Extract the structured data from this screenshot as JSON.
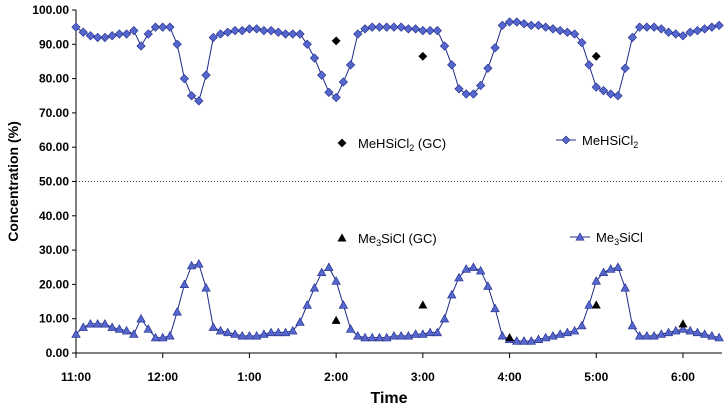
{
  "chart_data": {
    "type": "scatter",
    "title": "",
    "xlabel": "Time",
    "ylabel": "Concentration (%)",
    "ylim": [
      0,
      100
    ],
    "yticks": [
      "0.00",
      "10.00",
      "20.00",
      "30.00",
      "40.00",
      "50.00",
      "60.00",
      "70.00",
      "80.00",
      "90.00",
      "100.00"
    ],
    "xlim_hours_from_1100": [
      0,
      7.45
    ],
    "xticks": [
      "11:00",
      "12:00",
      "1:00",
      "2:00",
      "3:00",
      "4:00",
      "5:00",
      "6:00"
    ],
    "grid": "dotted line at 50.00 only",
    "legend": [
      {
        "series": "MeHSiCl2_GC",
        "label_main": "MeHSiCl",
        "label_sub": "2",
        "label_tail": " (GC)"
      },
      {
        "series": "MeHSiCl2",
        "label_main": "MeHSiCl",
        "label_sub": "2",
        "label_tail": ""
      },
      {
        "series": "Me3SiCl_GC",
        "label_main": "Me",
        "label_sub": "3",
        "label_tail": "SiCl (GC)"
      },
      {
        "series": "Me3SiCl",
        "label_main": "Me",
        "label_sub": "3",
        "label_tail": "SiCl"
      }
    ],
    "colors": {
      "online": "#5566CC",
      "online_line": "#1F2A8A",
      "gc": "#000000",
      "grid": "#000000"
    },
    "series": [
      {
        "name": "MeHSiCl2",
        "marker": "diamond",
        "x": [
          "11:00",
          "11:05",
          "11:10",
          "11:15",
          "11:20",
          "11:25",
          "11:30",
          "11:35",
          "11:40",
          "11:45",
          "11:50",
          "11:55",
          "12:00",
          "12:05",
          "12:10",
          "12:15",
          "12:20",
          "12:25",
          "12:30",
          "12:35",
          "12:40",
          "12:45",
          "12:50",
          "12:55",
          "1:00",
          "1:05",
          "1:10",
          "1:15",
          "1:20",
          "1:25",
          "1:30",
          "1:35",
          "1:40",
          "1:45",
          "1:50",
          "1:55",
          "2:00",
          "2:05",
          "2:10",
          "2:15",
          "2:20",
          "2:25",
          "2:30",
          "2:35",
          "2:40",
          "2:45",
          "2:50",
          "2:55",
          "3:00",
          "3:05",
          "3:10",
          "3:15",
          "3:20",
          "3:25",
          "3:30",
          "3:35",
          "3:40",
          "3:45",
          "3:50",
          "3:55",
          "4:00",
          "4:05",
          "4:10",
          "4:15",
          "4:20",
          "4:25",
          "4:30",
          "4:35",
          "4:40",
          "4:45",
          "4:50",
          "4:55",
          "5:00",
          "5:05",
          "5:10",
          "5:15",
          "5:20",
          "5:25",
          "5:30",
          "5:35",
          "5:40",
          "5:45",
          "5:50",
          "5:55",
          "6:00",
          "6:05",
          "6:10",
          "6:15",
          "6:20",
          "6:25"
        ],
        "values": [
          95,
          93.5,
          92.5,
          92,
          92,
          92.5,
          93,
          93,
          94,
          89.5,
          93,
          95,
          95,
          95,
          90,
          80,
          75,
          73.5,
          81,
          92,
          93,
          93.5,
          94,
          94,
          94.5,
          94.5,
          94,
          94,
          93.5,
          93,
          93,
          93,
          90,
          86,
          81,
          76,
          74.5,
          79,
          84,
          93,
          94.5,
          95,
          95,
          95,
          95,
          95,
          94.5,
          94.5,
          94,
          94,
          94,
          89.5,
          84,
          77,
          75.5,
          75.5,
          78,
          83,
          89,
          95.5,
          96.5,
          96.5,
          96,
          95.5,
          95.5,
          95,
          94.5,
          94,
          93.5,
          93,
          90.5,
          84,
          77.5,
          76.5,
          75.5,
          75,
          83,
          92,
          95,
          95,
          95,
          94.5,
          93.5,
          93,
          92.5,
          93.5,
          94,
          94.5,
          95,
          95.5
        ]
      },
      {
        "name": "Me3SiCl",
        "marker": "triangle",
        "x": [
          "11:00",
          "11:05",
          "11:10",
          "11:15",
          "11:20",
          "11:25",
          "11:30",
          "11:35",
          "11:40",
          "11:45",
          "11:50",
          "11:55",
          "12:00",
          "12:05",
          "12:10",
          "12:15",
          "12:20",
          "12:25",
          "12:30",
          "12:35",
          "12:40",
          "12:45",
          "12:50",
          "12:55",
          "1:00",
          "1:05",
          "1:10",
          "1:15",
          "1:20",
          "1:25",
          "1:30",
          "1:35",
          "1:40",
          "1:45",
          "1:50",
          "1:55",
          "2:00",
          "2:05",
          "2:10",
          "2:15",
          "2:20",
          "2:25",
          "2:30",
          "2:35",
          "2:40",
          "2:45",
          "2:50",
          "2:55",
          "3:00",
          "3:05",
          "3:10",
          "3:15",
          "3:20",
          "3:25",
          "3:30",
          "3:35",
          "3:40",
          "3:45",
          "3:50",
          "3:55",
          "4:00",
          "4:05",
          "4:10",
          "4:15",
          "4:20",
          "4:25",
          "4:30",
          "4:35",
          "4:40",
          "4:45",
          "4:50",
          "4:55",
          "5:00",
          "5:05",
          "5:10",
          "5:15",
          "5:20",
          "5:25",
          "5:30",
          "5:35",
          "5:40",
          "5:45",
          "5:50",
          "5:55",
          "6:00",
          "6:05",
          "6:10",
          "6:15",
          "6:20",
          "6:25"
        ],
        "values": [
          5.5,
          7.5,
          8.5,
          8.5,
          8.5,
          7.5,
          7,
          6.5,
          5.5,
          10,
          7,
          4.5,
          4.5,
          5,
          12,
          20,
          25.5,
          26,
          19,
          7.5,
          6.5,
          6,
          5.5,
          5,
          5,
          5,
          5.5,
          6,
          6,
          6,
          6.5,
          9,
          14,
          19,
          23.5,
          25,
          21,
          14,
          7,
          5,
          4.5,
          4.5,
          4.5,
          4.5,
          5,
          5,
          5,
          5.5,
          5.5,
          6,
          6,
          10,
          17,
          22,
          24.5,
          25,
          24,
          19.5,
          13,
          5,
          4,
          3.5,
          3.5,
          3.5,
          4,
          4.5,
          5,
          5.5,
          6,
          6.5,
          8,
          14,
          21,
          23.5,
          24.5,
          25,
          19,
          8,
          5,
          5,
          5,
          5.5,
          6,
          6.5,
          7,
          6.5,
          6,
          5.5,
          5,
          4.5
        ]
      },
      {
        "name": "MeHSiCl2_GC",
        "marker": "diamond",
        "x": [
          "2:00",
          "3:00",
          "5:00"
        ],
        "values": [
          91,
          86.5,
          86.5
        ]
      },
      {
        "name": "Me3SiCl_GC",
        "marker": "triangle",
        "x": [
          "2:00",
          "3:00",
          "4:00",
          "5:00",
          "6:00"
        ],
        "values": [
          9.5,
          14,
          4.5,
          14,
          8.5
        ]
      }
    ]
  }
}
